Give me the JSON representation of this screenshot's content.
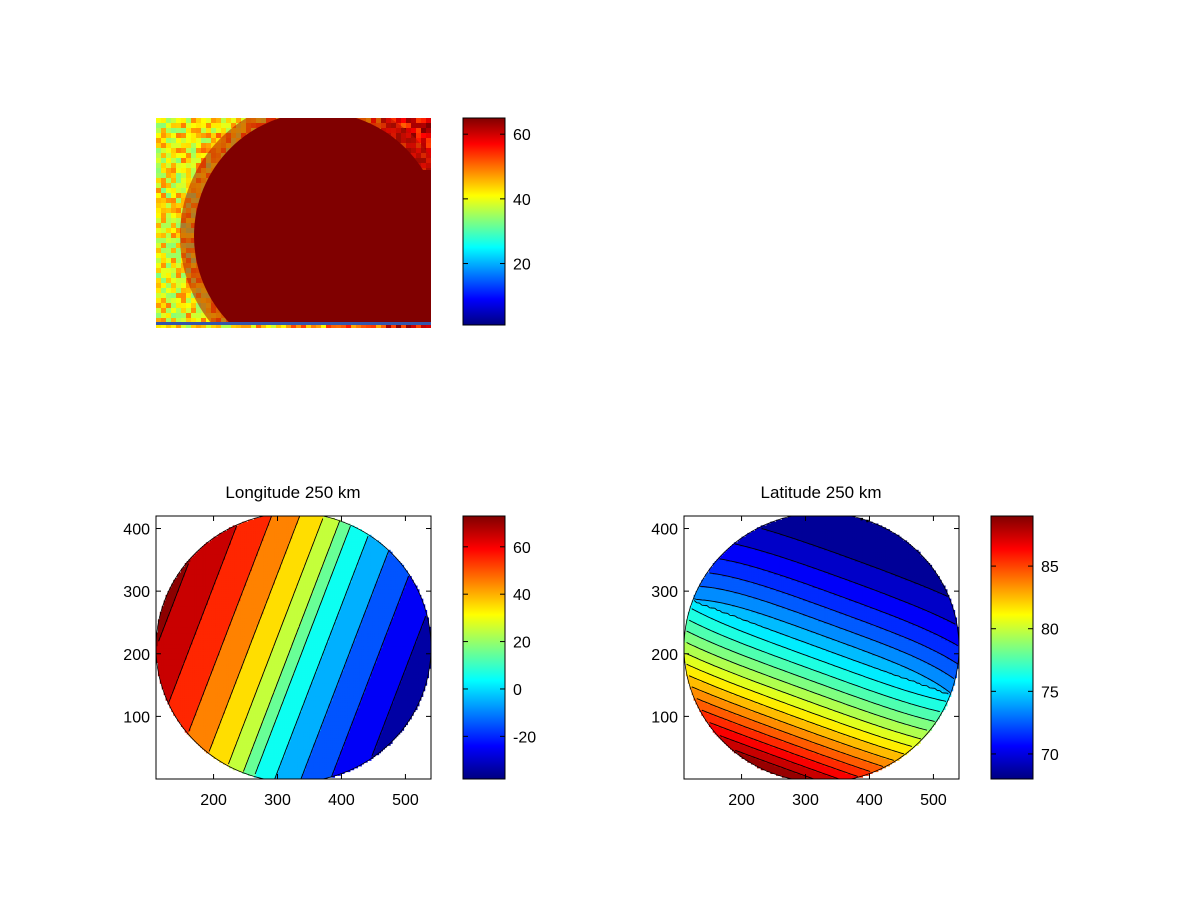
{
  "figure": {
    "background": "#ffffff"
  },
  "colormap": "jet",
  "chart_data": [
    {
      "type": "heatmap",
      "name": "image-panel",
      "title": "",
      "clim": [
        1,
        65
      ],
      "show_axes_ticks": false,
      "colorbar": {
        "ticks": [
          20,
          40,
          60
        ],
        "tick_labels": [
          "20",
          "40",
          "60"
        ]
      },
      "description_visible": "noisy orange/yellow background with a large saturated dark-red disk"
    },
    {
      "type": "heatmap",
      "name": "longitude-panel",
      "title": "Longitude 250 km",
      "style": "filled-contour",
      "xlim": [
        110,
        540
      ],
      "ylim": [
        0,
        420
      ],
      "x_ticks": [
        200,
        300,
        400,
        500
      ],
      "x_tick_labels": [
        "200",
        "300",
        "400",
        "500"
      ],
      "y_ticks": [
        100,
        200,
        300,
        400
      ],
      "y_tick_labels": [
        "100",
        "200",
        "300",
        "400"
      ],
      "clim": [
        -38,
        73
      ],
      "contour_levels": [
        -30,
        -20,
        -10,
        0,
        10,
        20,
        30,
        40,
        50,
        60,
        70
      ],
      "disk": {
        "center": [
          325,
          210
        ],
        "radius": 215
      },
      "field_range_on_disk": [
        -38,
        73
      ],
      "colorbar": {
        "ticks": [
          -20,
          0,
          20,
          40,
          60
        ],
        "tick_labels": [
          "-20",
          "0",
          "20",
          "40",
          "60"
        ]
      }
    },
    {
      "type": "heatmap",
      "name": "latitude-panel",
      "title": "Latitude 250 km",
      "style": "filled-contour",
      "xlim": [
        110,
        540
      ],
      "ylim": [
        0,
        420
      ],
      "x_ticks": [
        200,
        300,
        400,
        500
      ],
      "x_tick_labels": [
        "200",
        "300",
        "400",
        "500"
      ],
      "y_ticks": [
        100,
        200,
        300,
        400
      ],
      "y_tick_labels": [
        "100",
        "200",
        "300",
        "400"
      ],
      "clim": [
        68,
        89
      ],
      "contour_levels": [
        69,
        70,
        71,
        72,
        73,
        74,
        75,
        76,
        77,
        78,
        79,
        80,
        81,
        82,
        83,
        84,
        85,
        86,
        87,
        88
      ],
      "disk": {
        "center": [
          325,
          210
        ],
        "radius": 215
      },
      "field_range_on_disk": [
        68,
        89
      ],
      "colorbar": {
        "ticks": [
          70,
          75,
          80,
          85
        ],
        "tick_labels": [
          "70",
          "75",
          "80",
          "85"
        ]
      }
    }
  ]
}
